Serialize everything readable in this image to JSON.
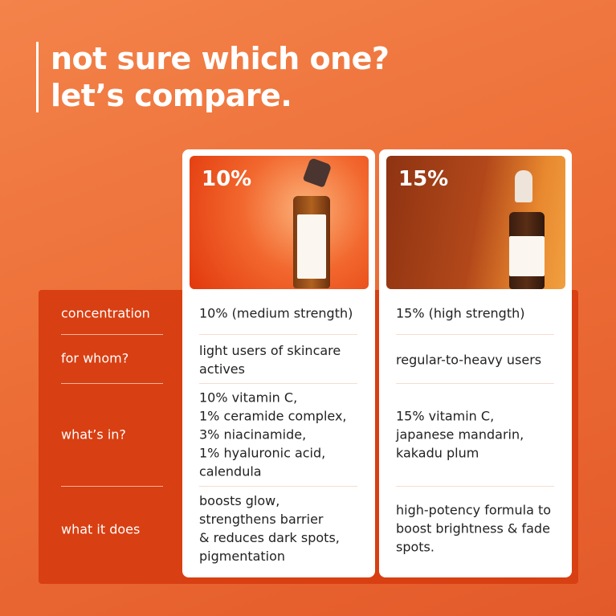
{
  "title": {
    "line1": "not sure which one?",
    "line2": "let’s compare."
  },
  "row_labels": [
    "concentration",
    "for whom?",
    "what’s in?",
    "what it does"
  ],
  "products": [
    {
      "badge": "10%",
      "image": "plum vitamin C serum bottle with dropper on orange background",
      "cells": [
        "10% (medium strength)",
        "light users of skincare actives",
        "10% vitamin C,\n1% ceramide complex,\n3% niacinamide,\n1% hyaluronic acid,\ncalendula",
        "boosts glow,\nstrengthens barrier\n& reduces dark spots,\npigmentation"
      ]
    },
    {
      "badge": "15%",
      "image": "plum 15% vitamin C serum bottle with dropper in warm light",
      "cells": [
        "15% (high strength)",
        "regular-to-heavy users",
        "15% vitamin C,\njapanese mandarin,\nkakadu plum",
        "high-potency formula to boost brightness & fade spots."
      ]
    }
  ],
  "colors": {
    "background": "#ec6d36",
    "panel": "#d83f12",
    "card": "#ffffff"
  }
}
